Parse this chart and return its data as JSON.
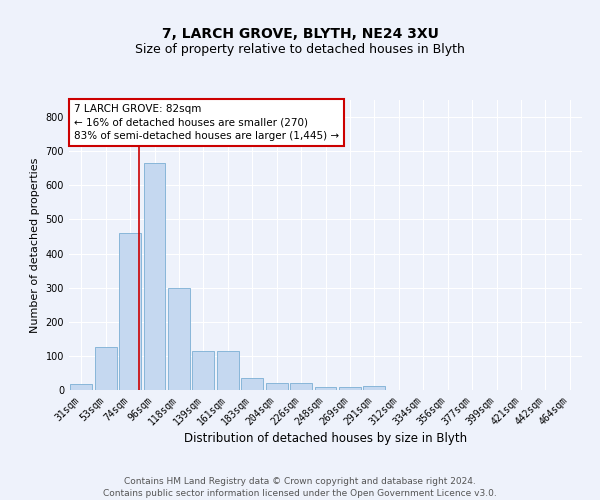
{
  "title1": "7, LARCH GROVE, BLYTH, NE24 3XU",
  "title2": "Size of property relative to detached houses in Blyth",
  "xlabel": "Distribution of detached houses by size in Blyth",
  "ylabel": "Number of detached properties",
  "categories": [
    "31sqm",
    "53sqm",
    "74sqm",
    "96sqm",
    "118sqm",
    "139sqm",
    "161sqm",
    "183sqm",
    "204sqm",
    "226sqm",
    "248sqm",
    "269sqm",
    "291sqm",
    "312sqm",
    "334sqm",
    "356sqm",
    "377sqm",
    "399sqm",
    "421sqm",
    "442sqm",
    "464sqm"
  ],
  "values": [
    18,
    125,
    460,
    665,
    300,
    115,
    115,
    35,
    20,
    20,
    8,
    8,
    12,
    0,
    0,
    0,
    0,
    0,
    0,
    0,
    0
  ],
  "bar_color": "#c5d8f0",
  "bar_edge_color": "#7bafd4",
  "vline_color": "#cc0000",
  "annotation_text": "7 LARCH GROVE: 82sqm\n← 16% of detached houses are smaller (270)\n83% of semi-detached houses are larger (1,445) →",
  "annotation_box_facecolor": "#ffffff",
  "annotation_box_edgecolor": "#cc0000",
  "ylim": [
    0,
    850
  ],
  "yticks": [
    0,
    100,
    200,
    300,
    400,
    500,
    600,
    700,
    800
  ],
  "background_color": "#eef2fb",
  "grid_color": "#ffffff",
  "footer_text": "Contains HM Land Registry data © Crown copyright and database right 2024.\nContains public sector information licensed under the Open Government Licence v3.0.",
  "title1_fontsize": 10,
  "title2_fontsize": 9,
  "xlabel_fontsize": 8.5,
  "ylabel_fontsize": 8,
  "tick_fontsize": 7,
  "annotation_fontsize": 7.5,
  "footer_fontsize": 6.5
}
